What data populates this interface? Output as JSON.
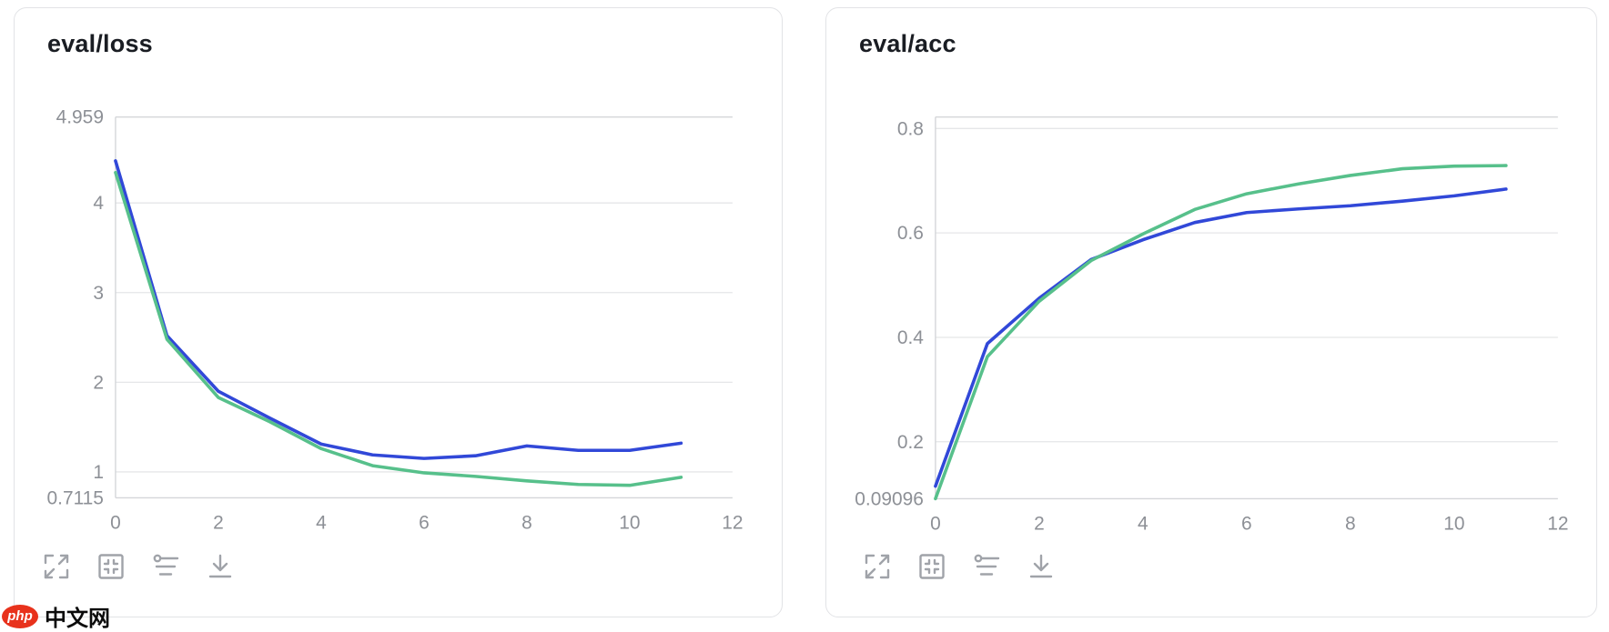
{
  "page": {
    "background": "#ffffff"
  },
  "watermark": {
    "badge_text": "php",
    "brand_text": "中文网",
    "badge_color": "#e8321c"
  },
  "toolbar": {
    "icons": [
      "fullscreen-icon",
      "fit-view-icon",
      "settings-icon",
      "download-icon"
    ]
  },
  "colors": {
    "line_blue": "#3148d8",
    "line_green": "#57c08b",
    "gridline": "#e5e6e8",
    "axis_border": "#d4d6d9",
    "tick_label": "#8d9096",
    "title": "#1a1d23",
    "icon": "#a0a3a9",
    "card_border": "#e2e3e6"
  },
  "chart_data": [
    {
      "type": "line",
      "title": "eval/loss",
      "xlabel": "",
      "ylabel": "",
      "legend_position": "none",
      "grid": true,
      "x": [
        0,
        1,
        2,
        3,
        4,
        5,
        6,
        7,
        8,
        9,
        10,
        11
      ],
      "series": [
        {
          "name": "blue",
          "color": "#3148d8",
          "values": [
            4.47,
            2.52,
            1.9,
            1.6,
            1.31,
            1.19,
            1.15,
            1.18,
            1.29,
            1.24,
            1.24,
            1.32
          ]
        },
        {
          "name": "green",
          "color": "#57c08b",
          "values": [
            4.34,
            2.48,
            1.83,
            1.56,
            1.26,
            1.07,
            0.99,
            0.95,
            0.9,
            0.86,
            0.85,
            0.94
          ]
        }
      ],
      "xlim": [
        0,
        12
      ],
      "ylim": [
        0.7115,
        4.959
      ],
      "xticks": [
        0,
        2,
        4,
        6,
        8,
        10,
        12
      ],
      "yticks": [
        {
          "value": 4.959,
          "label": "4.959",
          "grid": false
        },
        {
          "value": 4,
          "label": "4",
          "grid": true
        },
        {
          "value": 3,
          "label": "3",
          "grid": true
        },
        {
          "value": 2,
          "label": "2",
          "grid": true
        },
        {
          "value": 1,
          "label": "1",
          "grid": true
        },
        {
          "value": 0.7115,
          "label": "0.7115",
          "grid": false
        }
      ]
    },
    {
      "type": "line",
      "title": "eval/acc",
      "xlabel": "",
      "ylabel": "",
      "legend_position": "none",
      "grid": true,
      "x": [
        0,
        1,
        2,
        3,
        4,
        5,
        6,
        7,
        8,
        9,
        10,
        11
      ],
      "series": [
        {
          "name": "blue",
          "color": "#3148d8",
          "values": [
            0.115,
            0.388,
            0.475,
            0.549,
            0.587,
            0.62,
            0.639,
            0.646,
            0.652,
            0.661,
            0.671,
            0.684
          ]
        },
        {
          "name": "green",
          "color": "#57c08b",
          "values": [
            0.091,
            0.363,
            0.469,
            0.547,
            0.598,
            0.645,
            0.675,
            0.694,
            0.71,
            0.723,
            0.728,
            0.729
          ]
        }
      ],
      "xlim": [
        0,
        12
      ],
      "ylim": [
        0.09096,
        0.8221
      ],
      "xticks": [
        0,
        2,
        4,
        6,
        8,
        10,
        12
      ],
      "yticks": [
        {
          "value": 0.8,
          "label": "0.8",
          "grid": true
        },
        {
          "value": 0.6,
          "label": "0.6",
          "grid": true
        },
        {
          "value": 0.4,
          "label": "0.4",
          "grid": true
        },
        {
          "value": 0.2,
          "label": "0.2",
          "grid": true
        },
        {
          "value": 0.09096,
          "label": "0.09096",
          "grid": false
        }
      ]
    }
  ]
}
